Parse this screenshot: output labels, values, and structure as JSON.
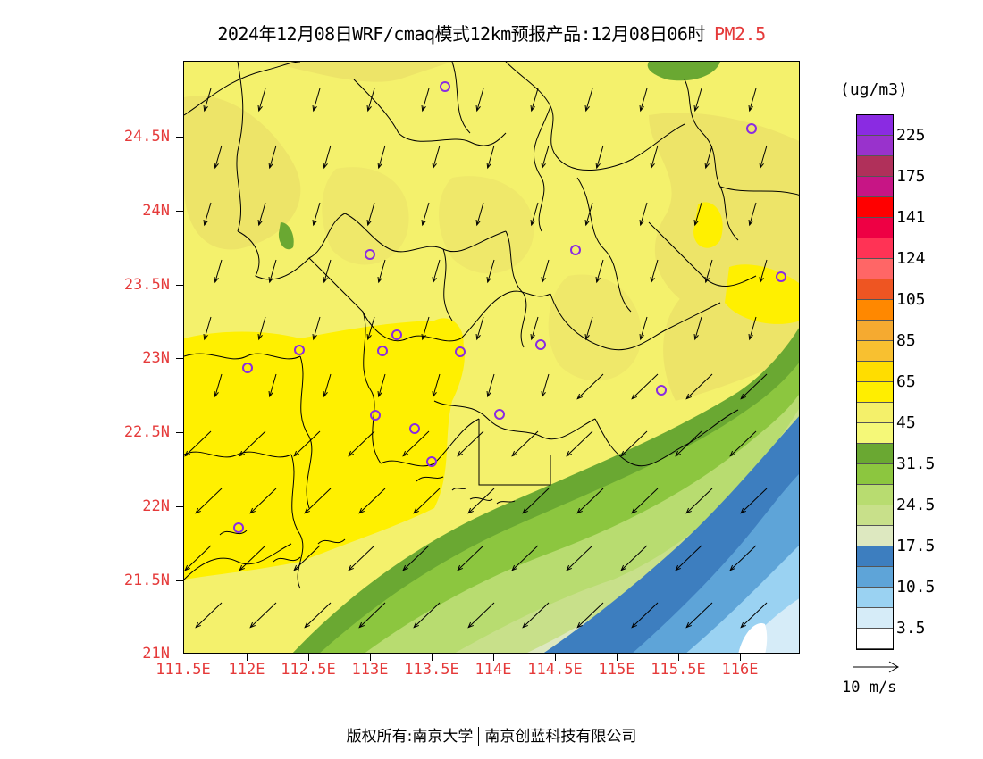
{
  "title": {
    "main": "2024年12月08日WRF/cmaq模式12km预报产品:12月08日06时",
    "pollutant": "PM2.5",
    "pollutant_color": "#e53a3a"
  },
  "axes": {
    "lat_labels": [
      "24.5N",
      "24N",
      "23.5N",
      "23N",
      "22.5N",
      "22N",
      "21.5N",
      "21N"
    ],
    "lon_labels": [
      "111.5E",
      "112E",
      "112.5E",
      "113E",
      "113.5E",
      "114E",
      "114.5E",
      "115E",
      "115.5E",
      "116E"
    ],
    "label_color": "#e53a3a"
  },
  "legend": {
    "unit": "(ug/m3)",
    "labels": [
      "225",
      "175",
      "141",
      "124",
      "105",
      "85",
      "65",
      "45",
      "31.5",
      "24.5",
      "17.5",
      "10.5",
      "3.5"
    ],
    "colors": [
      "#8a2be2",
      "#9932cc",
      "#b0305a",
      "#c71585",
      "#ff0000",
      "#ee0044",
      "#ff3355",
      "#ff6666",
      "#ee5522",
      "#ff8800",
      "#f5aa30",
      "#f8c030",
      "#ffdd00",
      "#ffee00",
      "#f4f06a",
      "#f5f878",
      "#6aa832",
      "#8cc63f",
      "#b8dc70",
      "#c8e08a",
      "#dde8c0",
      "#3d7ebf",
      "#5ea4d8",
      "#9ad2f2",
      "#d6ecf8",
      "#ffffff"
    ]
  },
  "wind_scale": {
    "label": "10 m/s"
  },
  "copyright": {
    "left": "版权所有:南京大学",
    "right": "南京创蓝科技有限公司"
  }
}
